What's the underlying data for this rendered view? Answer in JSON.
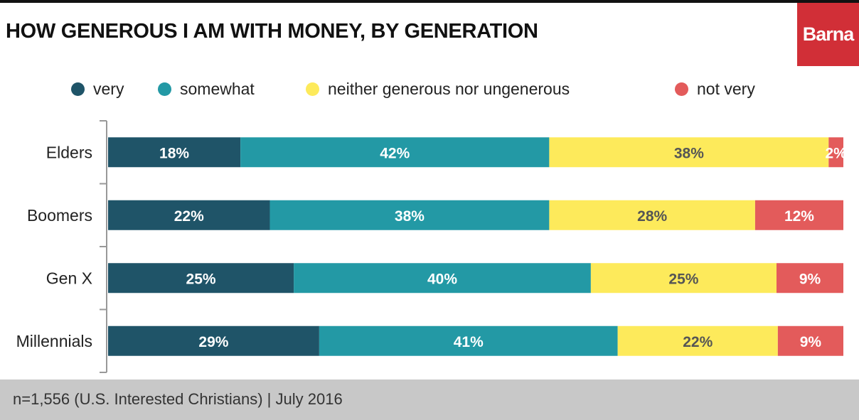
{
  "chart_data": {
    "type": "bar",
    "orientation": "horizontal",
    "stacked": true,
    "title": "HOW GENEROUS I AM WITH MONEY, BY GENERATION",
    "categories": [
      "Elders",
      "Boomers",
      "Gen X",
      "Millennials"
    ],
    "series": [
      {
        "name": "very",
        "color": "#1f5468",
        "label_color": "#ffffff",
        "values": [
          18,
          22,
          25,
          29
        ]
      },
      {
        "name": "somewhat",
        "color": "#2399a5",
        "label_color": "#ffffff",
        "values": [
          42,
          38,
          40,
          41
        ]
      },
      {
        "name": "neither generous nor ungenerous",
        "color": "#fdea5b",
        "label_color": "#555555",
        "values": [
          38,
          28,
          25,
          22
        ]
      },
      {
        "name": "not very",
        "color": "#e35b5b",
        "label_color": "#ffffff",
        "values": [
          2,
          12,
          9,
          9
        ]
      }
    ],
    "value_suffix": "%",
    "legend": "top",
    "grid": false
  },
  "logo": "Barna",
  "footer": "n=1,556 (U.S. Interested Christians) | July 2016"
}
